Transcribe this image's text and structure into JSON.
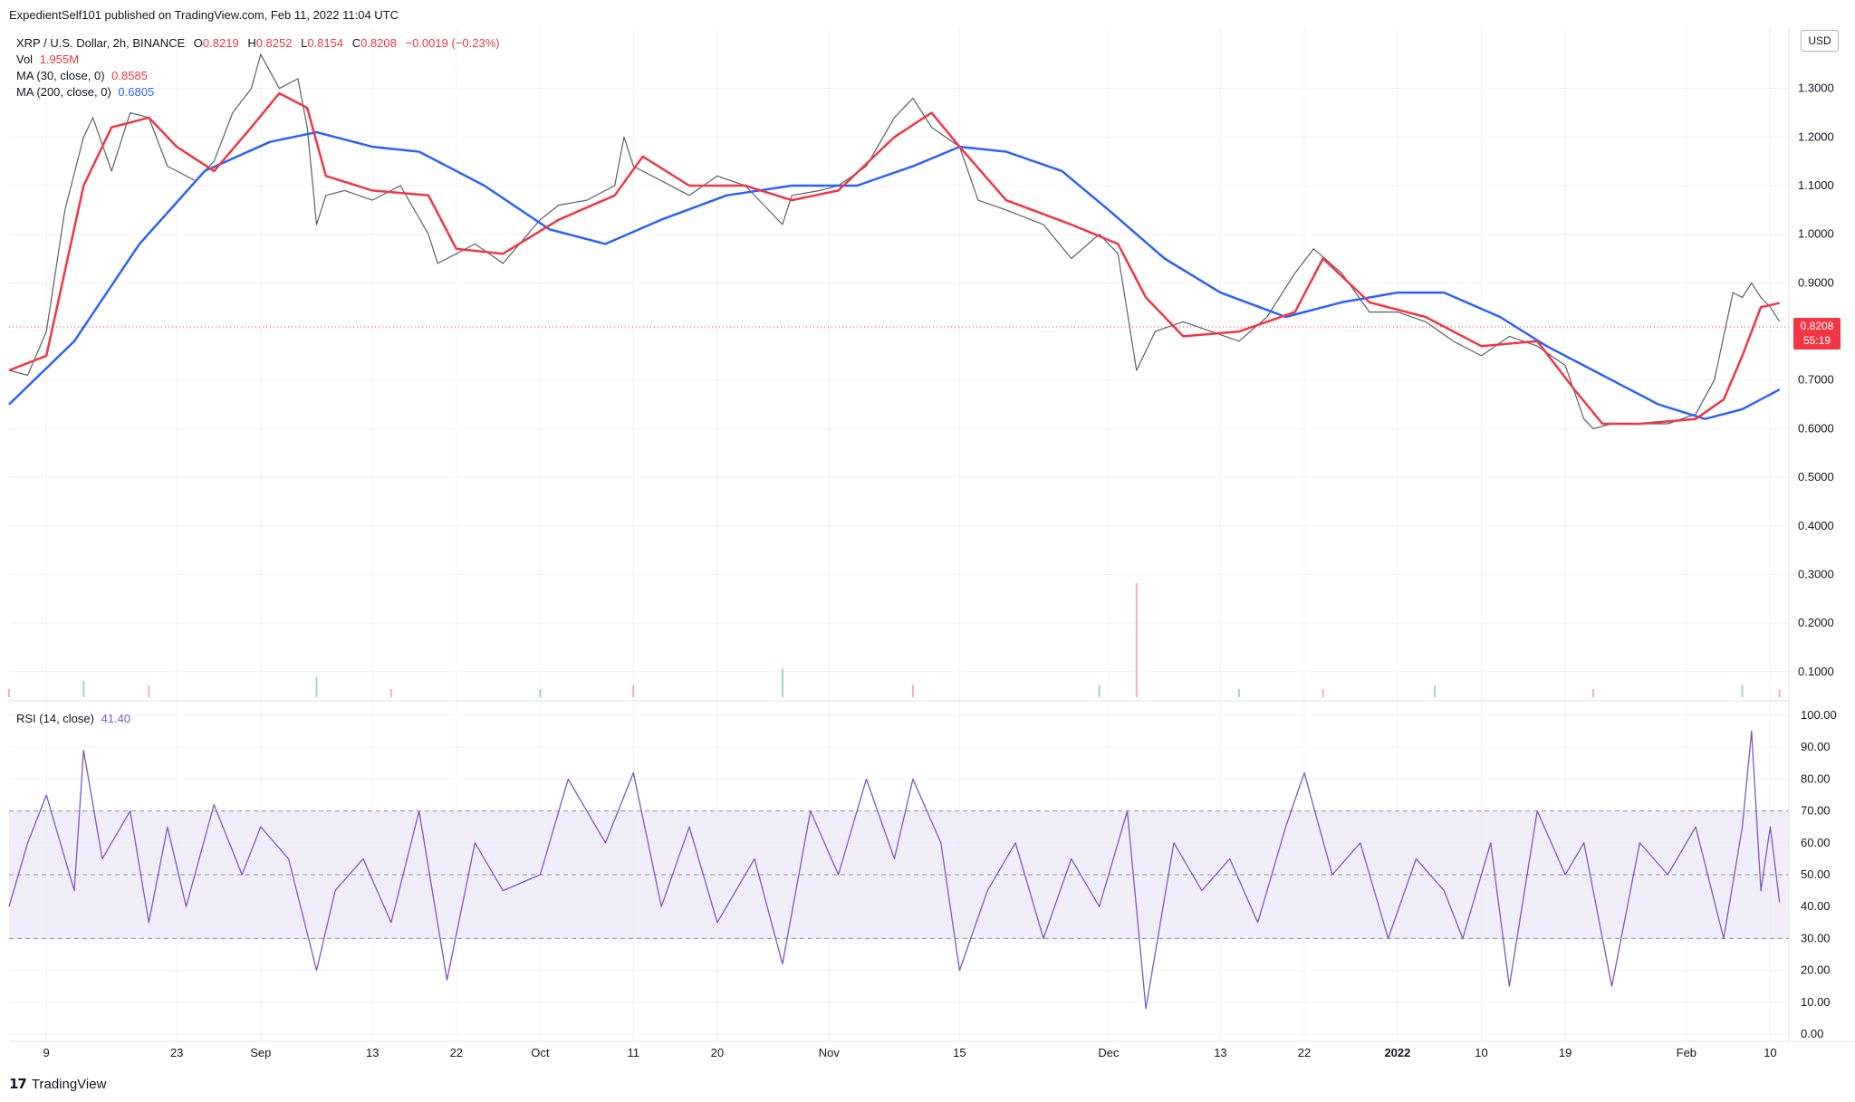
{
  "publish_header": "ExpedientSelf101 published on TradingView.com, Feb 11, 2022 11:04 UTC",
  "legend": {
    "symbol": "XRP / U.S. Dollar, 2h, BINANCE",
    "open_label": "O",
    "open": "0.8219",
    "high_label": "H",
    "high": "0.8252",
    "low_label": "L",
    "low": "0.8154",
    "close_label": "C",
    "close": "0.8208",
    "change": "−0.0019 (−0.23%)",
    "vol_label": "Vol",
    "vol": "1.955M",
    "ma30_label": "MA (30, close, 0)",
    "ma30": "0.8585",
    "ma200_label": "MA (200, close, 0)",
    "ma200": "0.6805",
    "rsi_label": "RSI (14, close)",
    "rsi": "41.40"
  },
  "currency": "USD",
  "last_price": {
    "value": "0.8208",
    "countdown": "55:19"
  },
  "footer": {
    "logo_mark": "17",
    "brand": "TradingView"
  },
  "colors": {
    "up": "#26a69a",
    "down": "#ef5350",
    "ma30": "#f23645",
    "ma200": "#2962ff",
    "rsi": "#7e57c2",
    "rsi_band": "#ede7f6",
    "grid": "#f0f3fa"
  },
  "chart_data": [
    {
      "type": "line",
      "title": "XRP / U.S. Dollar, 2h, BINANCE",
      "y_axis_position": "right",
      "ylim": [
        0.04,
        1.4
      ],
      "y_ticks": [
        "1.3000",
        "1.2000",
        "1.1000",
        "1.0000",
        "0.9000",
        "0.8000",
        "0.7000",
        "0.6000",
        "0.5000",
        "0.4000",
        "0.3000",
        "0.2000",
        "0.1000"
      ],
      "x_ticks": [
        "9",
        "23",
        "Sep",
        "13",
        "22",
        "Oct",
        "11",
        "20",
        "Nov",
        "15",
        "Dec",
        "13",
        "22",
        "2022",
        "10",
        "19",
        "Feb",
        "10"
      ],
      "x_tick_dates": [
        "2021-08-09",
        "2021-08-23",
        "2021-09-01",
        "2021-09-13",
        "2021-09-22",
        "2021-10-01",
        "2021-10-11",
        "2021-10-20",
        "2021-11-01",
        "2021-11-15",
        "2021-12-01",
        "2021-12-13",
        "2021-12-22",
        "2022-01-01",
        "2022-01-10",
        "2022-01-19",
        "2022-02-01",
        "2022-02-10"
      ],
      "x_range": [
        "2021-08-05",
        "2022-02-12"
      ],
      "series": [
        {
          "name": "Price (close)",
          "x": [
            "2021-08-05",
            "2021-08-07",
            "2021-08-09",
            "2021-08-11",
            "2021-08-13",
            "2021-08-14",
            "2021-08-16",
            "2021-08-18",
            "2021-08-20",
            "2021-08-22",
            "2021-08-23",
            "2021-08-25",
            "2021-08-27",
            "2021-08-29",
            "2021-08-31",
            "2021-09-01",
            "2021-09-03",
            "2021-09-05",
            "2021-09-06",
            "2021-09-07",
            "2021-09-08",
            "2021-09-10",
            "2021-09-13",
            "2021-09-16",
            "2021-09-19",
            "2021-09-20",
            "2021-09-22",
            "2021-09-24",
            "2021-09-27",
            "2021-10-01",
            "2021-10-03",
            "2021-10-06",
            "2021-10-09",
            "2021-10-10",
            "2021-10-11",
            "2021-10-14",
            "2021-10-17",
            "2021-10-20",
            "2021-10-23",
            "2021-10-27",
            "2021-10-28",
            "2021-10-31",
            "2021-11-02",
            "2021-11-05",
            "2021-11-08",
            "2021-11-10",
            "2021-11-12",
            "2021-11-15",
            "2021-11-17",
            "2021-11-20",
            "2021-11-24",
            "2021-11-27",
            "2021-11-30",
            "2021-12-02",
            "2021-12-04",
            "2021-12-06",
            "2021-12-09",
            "2021-12-12",
            "2021-12-15",
            "2021-12-18",
            "2021-12-21",
            "2021-12-23",
            "2021-12-26",
            "2021-12-29",
            "2022-01-01",
            "2022-01-04",
            "2022-01-07",
            "2022-01-10",
            "2022-01-13",
            "2022-01-16",
            "2022-01-19",
            "2022-01-21",
            "2022-01-22",
            "2022-01-24",
            "2022-01-27",
            "2022-01-30",
            "2022-02-02",
            "2022-02-04",
            "2022-02-06",
            "2022-02-07",
            "2022-02-08",
            "2022-02-09",
            "2022-02-10",
            "2022-02-11"
          ],
          "values": [
            0.72,
            0.71,
            0.8,
            1.05,
            1.2,
            1.24,
            1.13,
            1.25,
            1.24,
            1.14,
            1.13,
            1.11,
            1.15,
            1.25,
            1.3,
            1.37,
            1.3,
            1.32,
            1.22,
            1.02,
            1.08,
            1.09,
            1.07,
            1.1,
            1.0,
            0.94,
            0.96,
            0.98,
            0.94,
            1.03,
            1.06,
            1.07,
            1.1,
            1.2,
            1.14,
            1.11,
            1.08,
            1.12,
            1.1,
            1.02,
            1.08,
            1.09,
            1.1,
            1.14,
            1.24,
            1.28,
            1.22,
            1.18,
            1.07,
            1.05,
            1.02,
            0.95,
            1.0,
            0.96,
            0.72,
            0.8,
            0.82,
            0.8,
            0.78,
            0.83,
            0.92,
            0.97,
            0.92,
            0.84,
            0.84,
            0.82,
            0.78,
            0.75,
            0.79,
            0.77,
            0.73,
            0.62,
            0.6,
            0.61,
            0.61,
            0.61,
            0.63,
            0.7,
            0.88,
            0.87,
            0.9,
            0.87,
            0.85,
            0.8208
          ]
        },
        {
          "name": "MA (30, close, 0)",
          "x": [
            "2021-08-05",
            "2021-08-09",
            "2021-08-13",
            "2021-08-16",
            "2021-08-20",
            "2021-08-23",
            "2021-08-27",
            "2021-08-31",
            "2021-09-03",
            "2021-09-06",
            "2021-09-08",
            "2021-09-13",
            "2021-09-19",
            "2021-09-22",
            "2021-09-27",
            "2021-10-03",
            "2021-10-09",
            "2021-10-12",
            "2021-10-17",
            "2021-10-23",
            "2021-10-28",
            "2021-11-02",
            "2021-11-08",
            "2021-11-12",
            "2021-11-15",
            "2021-11-20",
            "2021-11-27",
            "2021-12-02",
            "2021-12-05",
            "2021-12-09",
            "2021-12-15",
            "2021-12-21",
            "2021-12-24",
            "2021-12-29",
            "2022-01-04",
            "2022-01-10",
            "2022-01-16",
            "2022-01-20",
            "2022-01-23",
            "2022-01-27",
            "2022-02-02",
            "2022-02-05",
            "2022-02-07",
            "2022-02-09",
            "2022-02-11"
          ],
          "values": [
            0.72,
            0.75,
            1.1,
            1.22,
            1.24,
            1.18,
            1.13,
            1.22,
            1.29,
            1.26,
            1.12,
            1.09,
            1.08,
            0.97,
            0.96,
            1.03,
            1.08,
            1.16,
            1.1,
            1.1,
            1.07,
            1.09,
            1.2,
            1.25,
            1.18,
            1.07,
            1.02,
            0.98,
            0.87,
            0.79,
            0.8,
            0.84,
            0.95,
            0.86,
            0.83,
            0.77,
            0.78,
            0.68,
            0.61,
            0.61,
            0.62,
            0.66,
            0.75,
            0.85,
            0.8585
          ]
        },
        {
          "name": "MA (200, close, 0)",
          "x": [
            "2021-08-05",
            "2021-08-12",
            "2021-08-19",
            "2021-08-26",
            "2021-09-02",
            "2021-09-07",
            "2021-09-13",
            "2021-09-18",
            "2021-09-25",
            "2021-10-02",
            "2021-10-08",
            "2021-10-14",
            "2021-10-21",
            "2021-10-28",
            "2021-11-04",
            "2021-11-10",
            "2021-11-15",
            "2021-11-20",
            "2021-11-26",
            "2021-12-01",
            "2021-12-07",
            "2021-12-13",
            "2021-12-20",
            "2021-12-26",
            "2022-01-01",
            "2022-01-06",
            "2022-01-12",
            "2022-01-17",
            "2022-01-23",
            "2022-01-29",
            "2022-02-03",
            "2022-02-07",
            "2022-02-11"
          ],
          "values": [
            0.65,
            0.78,
            0.98,
            1.13,
            1.19,
            1.21,
            1.18,
            1.17,
            1.1,
            1.01,
            0.98,
            1.03,
            1.08,
            1.1,
            1.1,
            1.14,
            1.18,
            1.17,
            1.13,
            1.05,
            0.95,
            0.88,
            0.83,
            0.86,
            0.88,
            0.88,
            0.83,
            0.77,
            0.71,
            0.65,
            0.62,
            0.64,
            0.6805
          ]
        },
        {
          "name": "Vol",
          "x": [
            "2021-08-05",
            "2021-08-13",
            "2021-08-20",
            "2021-09-07",
            "2021-09-15",
            "2021-10-01",
            "2021-10-11",
            "2021-10-27",
            "2021-11-10",
            "2021-11-30",
            "2021-12-04",
            "2021-12-15",
            "2021-12-24",
            "2022-01-05",
            "2022-01-22",
            "2022-02-07",
            "2022-02-11"
          ],
          "values_millions": [
            2,
            4,
            3,
            5,
            2,
            2,
            3,
            7,
            3,
            3,
            28,
            2,
            2,
            3,
            2,
            3,
            1.955
          ]
        }
      ]
    },
    {
      "type": "line",
      "title": "RSI (14, close)",
      "y_axis_position": "right",
      "ylim": [
        0,
        100
      ],
      "y_ticks": [
        "100.00",
        "90.00",
        "80.00",
        "70.00",
        "60.00",
        "50.00",
        "40.00",
        "30.00",
        "20.00",
        "10.00",
        "0.00"
      ],
      "bands": [
        30,
        50,
        70
      ],
      "series": [
        {
          "name": "RSI (14, close)",
          "x": [
            "2021-08-05",
            "2021-08-07",
            "2021-08-09",
            "2021-08-12",
            "2021-08-13",
            "2021-08-15",
            "2021-08-18",
            "2021-08-20",
            "2021-08-22",
            "2021-08-24",
            "2021-08-27",
            "2021-08-30",
            "2021-09-01",
            "2021-09-04",
            "2021-09-07",
            "2021-09-09",
            "2021-09-12",
            "2021-09-15",
            "2021-09-18",
            "2021-09-21",
            "2021-09-24",
            "2021-09-27",
            "2021-10-01",
            "2021-10-04",
            "2021-10-08",
            "2021-10-11",
            "2021-10-14",
            "2021-10-17",
            "2021-10-20",
            "2021-10-24",
            "2021-10-27",
            "2021-10-30",
            "2021-11-02",
            "2021-11-05",
            "2021-11-08",
            "2021-11-10",
            "2021-11-13",
            "2021-11-15",
            "2021-11-18",
            "2021-11-21",
            "2021-11-24",
            "2021-11-27",
            "2021-11-30",
            "2021-12-03",
            "2021-12-05",
            "2021-12-08",
            "2021-12-11",
            "2021-12-14",
            "2021-12-17",
            "2021-12-20",
            "2021-12-22",
            "2021-12-25",
            "2021-12-28",
            "2021-12-31",
            "2022-01-03",
            "2022-01-06",
            "2022-01-08",
            "2022-01-11",
            "2022-01-13",
            "2022-01-16",
            "2022-01-19",
            "2022-01-21",
            "2022-01-24",
            "2022-01-27",
            "2022-01-30",
            "2022-02-02",
            "2022-02-05",
            "2022-02-07",
            "2022-02-08",
            "2022-02-09",
            "2022-02-10",
            "2022-02-11"
          ],
          "values": [
            40,
            60,
            75,
            45,
            89,
            55,
            70,
            35,
            65,
            40,
            72,
            50,
            65,
            55,
            20,
            45,
            55,
            35,
            70,
            17,
            60,
            45,
            50,
            80,
            60,
            82,
            40,
            65,
            35,
            55,
            22,
            70,
            50,
            80,
            55,
            80,
            60,
            20,
            45,
            60,
            30,
            55,
            40,
            70,
            8,
            60,
            45,
            55,
            35,
            65,
            82,
            50,
            60,
            30,
            55,
            45,
            30,
            60,
            15,
            70,
            50,
            60,
            15,
            60,
            50,
            65,
            30,
            65,
            95,
            45,
            65,
            41.4
          ]
        }
      ]
    }
  ]
}
